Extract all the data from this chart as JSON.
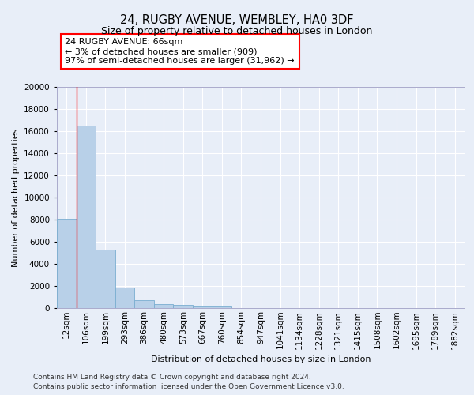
{
  "title": "24, RUGBY AVENUE, WEMBLEY, HA0 3DF",
  "subtitle": "Size of property relative to detached houses in London",
  "xlabel": "Distribution of detached houses by size in London",
  "ylabel": "Number of detached properties",
  "categories": [
    "12sqm",
    "106sqm",
    "199sqm",
    "293sqm",
    "386sqm",
    "480sqm",
    "573sqm",
    "667sqm",
    "760sqm",
    "854sqm",
    "947sqm",
    "1041sqm",
    "1134sqm",
    "1228sqm",
    "1321sqm",
    "1415sqm",
    "1508sqm",
    "1602sqm",
    "1695sqm",
    "1789sqm",
    "1882sqm"
  ],
  "values": [
    8100,
    16500,
    5300,
    1850,
    750,
    330,
    270,
    230,
    200,
    0,
    0,
    0,
    0,
    0,
    0,
    0,
    0,
    0,
    0,
    0,
    0
  ],
  "bar_color": "#b8d0e8",
  "bar_edge_color": "#7aaed0",
  "annotation_text": "24 RUGBY AVENUE: 66sqm\n← 3% of detached houses are smaller (909)\n97% of semi-detached houses are larger (31,962) →",
  "background_color": "#e8eef8",
  "plot_bg_color": "#e8eef8",
  "ylim": [
    0,
    20000
  ],
  "yticks": [
    0,
    2000,
    4000,
    6000,
    8000,
    10000,
    12000,
    14000,
    16000,
    18000,
    20000
  ],
  "footer_line1": "Contains HM Land Registry data © Crown copyright and database right 2024.",
  "footer_line2": "Contains public sector information licensed under the Open Government Licence v3.0.",
  "grid_color": "#ffffff",
  "title_fontsize": 10.5,
  "subtitle_fontsize": 9,
  "axis_label_fontsize": 8,
  "tick_fontsize": 7.5,
  "footer_fontsize": 6.5
}
